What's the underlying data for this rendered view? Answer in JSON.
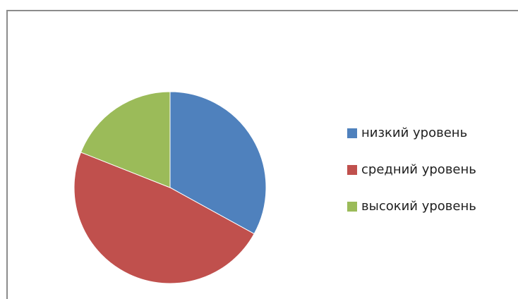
{
  "chart_data": {
    "type": "pie",
    "categories": [
      "низкий уровень",
      "средний уровень",
      "высокий уровень"
    ],
    "values": [
      33,
      48,
      19
    ],
    "colors": [
      "#4f81bd",
      "#c0504d",
      "#9bbb59"
    ],
    "title": "",
    "legend_position": "right",
    "start_angle_direction": "clockwise from top"
  },
  "legend": {
    "items": [
      {
        "label": "низкий уровень",
        "color": "#4f81bd"
      },
      {
        "label": "средний уровень",
        "color": "#c0504d"
      },
      {
        "label": "высокий уровень",
        "color": "#9bbb59"
      }
    ]
  }
}
